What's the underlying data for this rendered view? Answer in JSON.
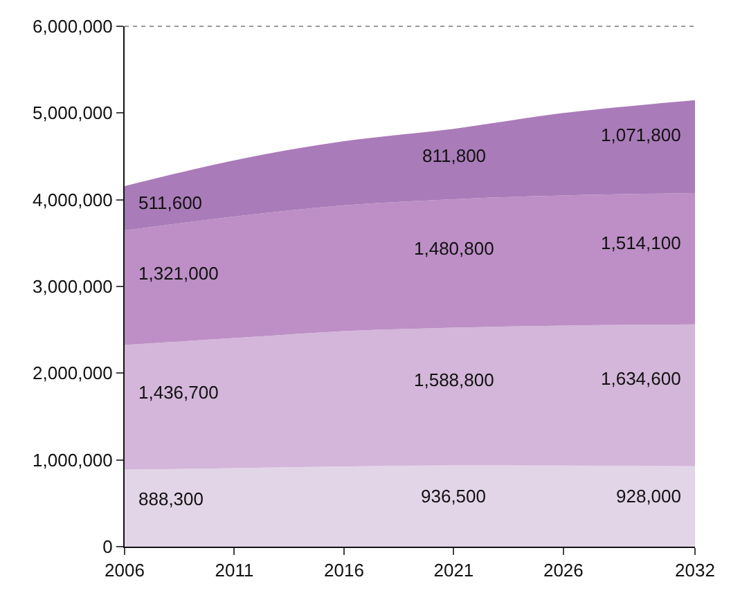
{
  "chart_data": {
    "type": "area",
    "stacked": true,
    "x": [
      2006,
      2011,
      2016,
      2021,
      2026,
      2032
    ],
    "series": [
      {
        "color": "#e3d5e8",
        "values": [
          888300,
          905000,
          925000,
          936500,
          935000,
          928000
        ],
        "value_labels": [
          "888,300",
          null,
          null,
          "936,500",
          null,
          "928,000"
        ]
      },
      {
        "color": "#d3b6d9",
        "values": [
          1436700,
          1500000,
          1560000,
          1588800,
          1615000,
          1634600
        ],
        "value_labels": [
          "1,436,700",
          null,
          null,
          "1,588,800",
          null,
          "1,634,600"
        ]
      },
      {
        "color": "#bd8fc6",
        "values": [
          1321000,
          1400000,
          1450000,
          1480800,
          1500000,
          1514100
        ],
        "value_labels": [
          "1,321,000",
          null,
          null,
          "1,480,800",
          null,
          "1,514,100"
        ]
      },
      {
        "color": "#aa7bb9",
        "values": [
          511600,
          650000,
          740000,
          811800,
          950000,
          1071800
        ],
        "value_labels": [
          "511,600",
          null,
          null,
          "811,800",
          null,
          "1,071,800"
        ]
      }
    ],
    "xlim": [
      2006,
      2032
    ],
    "xticks": [
      2006,
      2011,
      2016,
      2021,
      2026,
      2032
    ],
    "ylim": [
      0,
      6000000
    ],
    "yticks": [
      {
        "value": 0,
        "label": "0"
      },
      {
        "value": 1000000,
        "label": "1,000,000"
      },
      {
        "value": 2000000,
        "label": "2,000,000"
      },
      {
        "value": 3000000,
        "label": "3,000,000"
      },
      {
        "value": 4000000,
        "label": "4,000,000"
      },
      {
        "value": 5000000,
        "label": "5,000,000"
      },
      {
        "value": 6000000,
        "label": "6,000,000"
      }
    ]
  }
}
